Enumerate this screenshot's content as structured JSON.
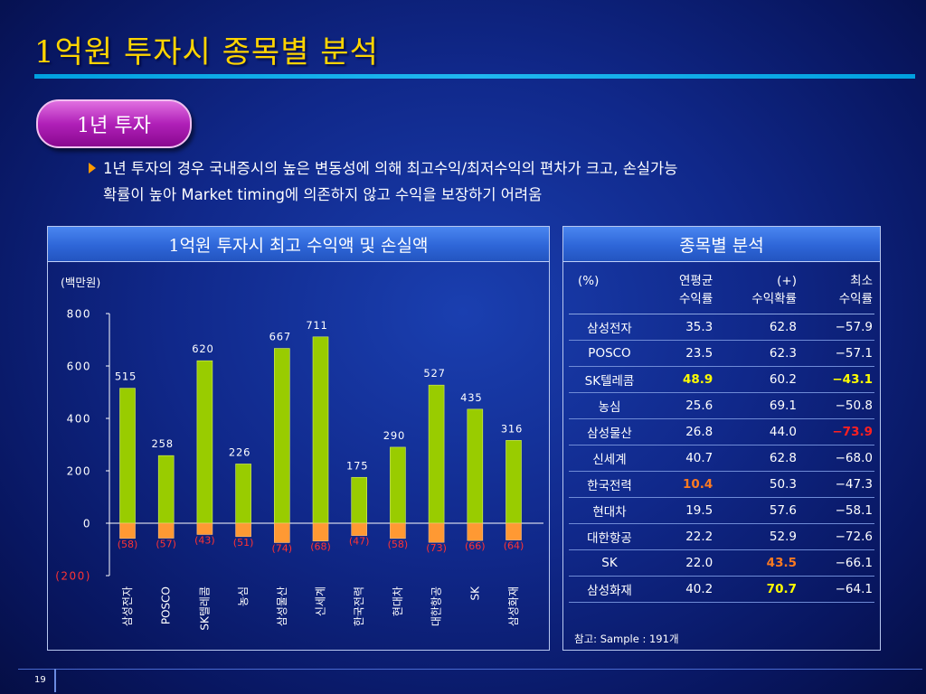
{
  "slide": {
    "title": "1억원 투자시 종목별 분석",
    "pill_label": "1년 투자",
    "bullet_line1": "1년 투자의 경우 국내증시의 높은 변동성에 의해 최고수익/최저수익의 편차가 크고, 손실가능",
    "bullet_line2": "확률이 높아 Market timing에 의존하지 않고 수익을 보장하기 어려움",
    "page_number": "19"
  },
  "left_panel": {
    "header": "1억원 투자시 최고 수익액 및 손실액",
    "unit_label": "(백만원)"
  },
  "right_panel": {
    "header": "종목별 분석",
    "col_headers": {
      "c0": "(%)",
      "c1_l1": "연평균",
      "c1_l2": "수익률",
      "c2_l1": "(+)",
      "c2_l2": "수익확률",
      "c3_l1": "최소",
      "c3_l2": "수익률"
    },
    "rows": [
      {
        "name": "삼성전자",
        "avg": "35.3",
        "prob": "62.8",
        "min": "−57.9"
      },
      {
        "name": "POSCO",
        "avg": "23.5",
        "prob": "62.3",
        "min": "−57.1"
      },
      {
        "name": "SK텔레콤",
        "avg": "48.9",
        "prob": "60.2",
        "min": "−43.1"
      },
      {
        "name": "농심",
        "avg": "25.6",
        "prob": "69.1",
        "min": "−50.8"
      },
      {
        "name": "삼성물산",
        "avg": "26.8",
        "prob": "44.0",
        "min": "−73.9"
      },
      {
        "name": "신세계",
        "avg": "40.7",
        "prob": "62.8",
        "min": "−68.0"
      },
      {
        "name": "한국전력",
        "avg": "10.4",
        "prob": "50.3",
        "min": "−47.3"
      },
      {
        "name": "현대차",
        "avg": "19.5",
        "prob": "57.6",
        "min": "−58.1"
      },
      {
        "name": "대한항공",
        "avg": "22.2",
        "prob": "52.9",
        "min": "−72.6"
      },
      {
        "name": "SK",
        "avg": "22.0",
        "prob": "43.5",
        "min": "−66.1"
      },
      {
        "name": "삼성화재",
        "avg": "40.2",
        "prob": "70.7",
        "min": "−64.1"
      }
    ],
    "highlights": {
      "yellow": "#ffff00",
      "orange": "#ff7a20",
      "red": "#ff2020",
      "cells": [
        {
          "row": 2,
          "col": "avg",
          "color": "yellow"
        },
        {
          "row": 2,
          "col": "min",
          "color": "yellow"
        },
        {
          "row": 4,
          "col": "min",
          "color": "red"
        },
        {
          "row": 6,
          "col": "avg",
          "color": "orange"
        },
        {
          "row": 9,
          "col": "prob",
          "color": "orange"
        },
        {
          "row": 10,
          "col": "prob",
          "color": "yellow"
        }
      ]
    },
    "note": "참고: Sample : 191개"
  },
  "chart_data": {
    "type": "bar",
    "categories": [
      "삼성전자",
      "POSCO",
      "SK텔레콤",
      "농심",
      "삼성물산",
      "신세계",
      "한국전력",
      "현대차",
      "대한항공",
      "SK",
      "삼성화재"
    ],
    "series": [
      {
        "values": [
          515,
          258,
          620,
          226,
          667,
          711,
          175,
          290,
          527,
          435,
          316
        ],
        "color": "#99cc00"
      },
      {
        "values": [
          -58,
          -57,
          -43,
          -51,
          -74,
          -68,
          -47,
          -58,
          -73,
          -66,
          -64
        ],
        "color": "#ff9933"
      }
    ],
    "positive_labels": [
      "515",
      "258",
      "620",
      "226",
      "667",
      "711",
      "175",
      "290",
      "527",
      "435",
      "316"
    ],
    "negative_labels": [
      "(58)",
      "(57)",
      "(43)",
      "(51)",
      "(74)",
      "(68)",
      "(47)",
      "(58)",
      "(73)",
      "(66)",
      "(64)"
    ],
    "y_ticks": [
      "800",
      "600",
      "400",
      "200",
      "0",
      "(200)"
    ],
    "y_tick_values": [
      800,
      600,
      400,
      200,
      0,
      -200
    ],
    "ylim": [
      -200,
      800
    ],
    "label_color_negative": "#ff3333",
    "label_color_positive": "#ffffff",
    "title": "1억원 투자시 최고 수익액 및 손실액",
    "ylabel": "(백만원)"
  }
}
